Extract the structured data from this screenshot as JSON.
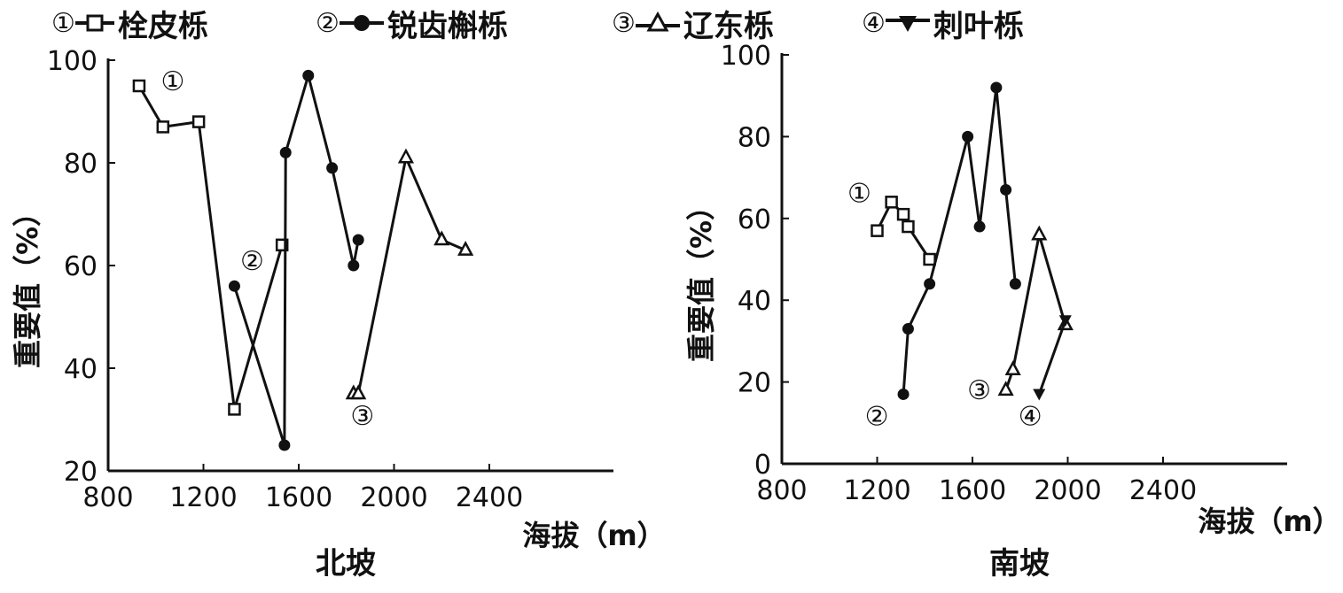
{
  "legend": [
    {
      "num": "①",
      "name": "栓皮栎",
      "marker": "square-open"
    },
    {
      "num": "②",
      "name": "锐齿槲栎",
      "marker": "circle-filled"
    },
    {
      "num": "③",
      "name": "辽东栎",
      "marker": "triangle-open"
    },
    {
      "num": "④",
      "name": "刺叶栎",
      "marker": "triangle-down-filled"
    }
  ],
  "chart_data": [
    {
      "type": "line",
      "title": "北坡",
      "xlabel": "海拔（m）",
      "ylabel": "重要值（%）",
      "xlim": [
        800,
        2400
      ],
      "ylim": [
        20,
        100
      ],
      "xticks": [
        "800",
        "1200",
        "1600",
        "2000",
        "2400"
      ],
      "yticks": [
        "20",
        "40",
        "60",
        "80",
        "100"
      ],
      "series": [
        {
          "name": "栓皮栎",
          "label": "①",
          "marker": "square-open",
          "x": [
            930,
            1030,
            1180,
            1330,
            1530
          ],
          "y": [
            95,
            87,
            88,
            32,
            64
          ]
        },
        {
          "name": "锐齿槲栎",
          "label": "②",
          "marker": "circle-filled",
          "x": [
            1330,
            1540,
            1545,
            1640,
            1740,
            1830,
            1850
          ],
          "y": [
            56,
            25,
            82,
            97,
            79,
            60,
            65
          ]
        },
        {
          "name": "辽东栎",
          "label": "③",
          "marker": "triangle-open",
          "x": [
            1830,
            1850,
            2050,
            2200,
            2300
          ],
          "y": [
            35,
            35,
            81,
            65,
            63
          ]
        }
      ]
    },
    {
      "type": "line",
      "title": "南坡",
      "xlabel": "海拔（m）",
      "ylabel": "重要值（%）",
      "xlim": [
        800,
        2400
      ],
      "ylim": [
        0,
        100
      ],
      "xticks": [
        "800",
        "1200",
        "1600",
        "2000",
        "2400"
      ],
      "yticks": [
        "0",
        "20",
        "40",
        "60",
        "80",
        "100"
      ],
      "series": [
        {
          "name": "栓皮栎",
          "label": "①",
          "marker": "square-open",
          "x": [
            1200,
            1260,
            1310,
            1330,
            1420
          ],
          "y": [
            57,
            64,
            61,
            58,
            50
          ]
        },
        {
          "name": "锐齿槲栎",
          "label": "②",
          "marker": "circle-filled",
          "x": [
            1310,
            1330,
            1420,
            1580,
            1630,
            1700,
            1740,
            1780
          ],
          "y": [
            17,
            33,
            44,
            80,
            58,
            92,
            67,
            44
          ]
        },
        {
          "name": "辽东栎",
          "label": "③",
          "marker": "triangle-open",
          "x": [
            1740,
            1770,
            1880,
            1990
          ],
          "y": [
            18,
            23,
            56,
            34
          ]
        },
        {
          "name": "刺叶栎",
          "label": "④",
          "marker": "triangle-down-filled",
          "x": [
            1880,
            1990
          ],
          "y": [
            17,
            35
          ]
        }
      ]
    }
  ]
}
